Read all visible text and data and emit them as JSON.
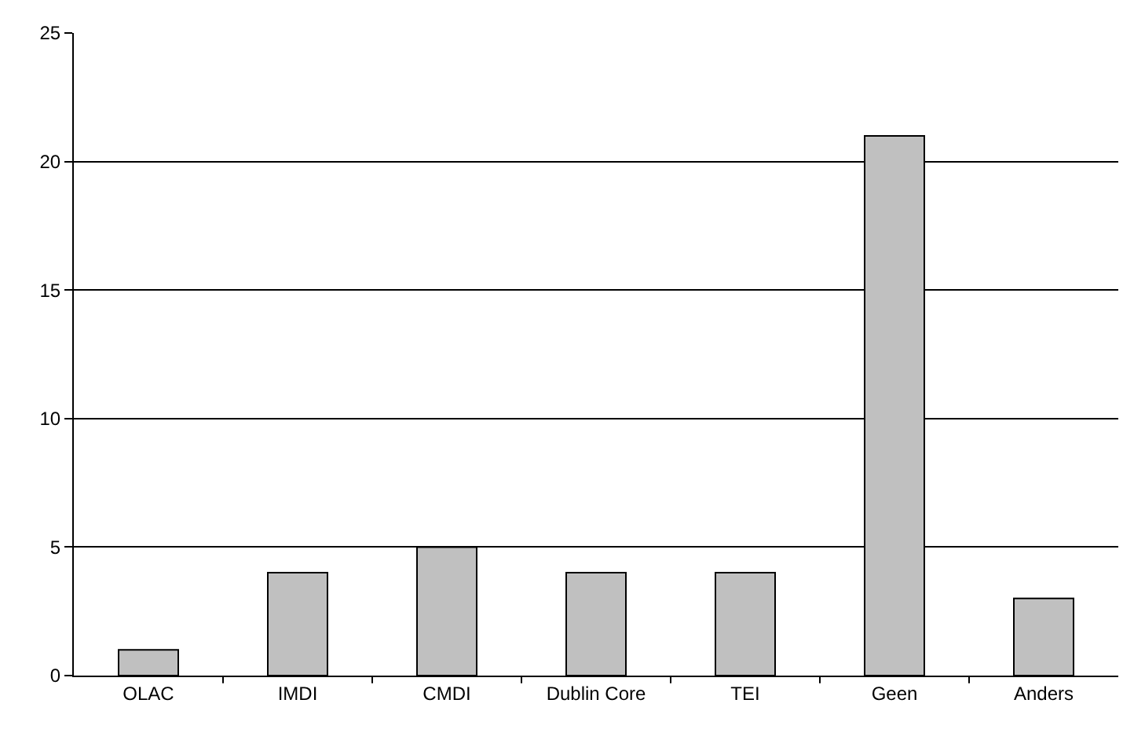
{
  "chart_data": {
    "type": "bar",
    "categories": [
      "OLAC",
      "IMDI",
      "CMDI",
      "Dublin Core",
      "TEI",
      "Geen",
      "Anders"
    ],
    "values": [
      1,
      4,
      5,
      4,
      4,
      21,
      3
    ],
    "color": "#c0c0c0",
    "ylim": [
      0,
      25
    ],
    "yticks": [
      0,
      5,
      10,
      15,
      20,
      25
    ],
    "grid": "y",
    "legend": false
  }
}
